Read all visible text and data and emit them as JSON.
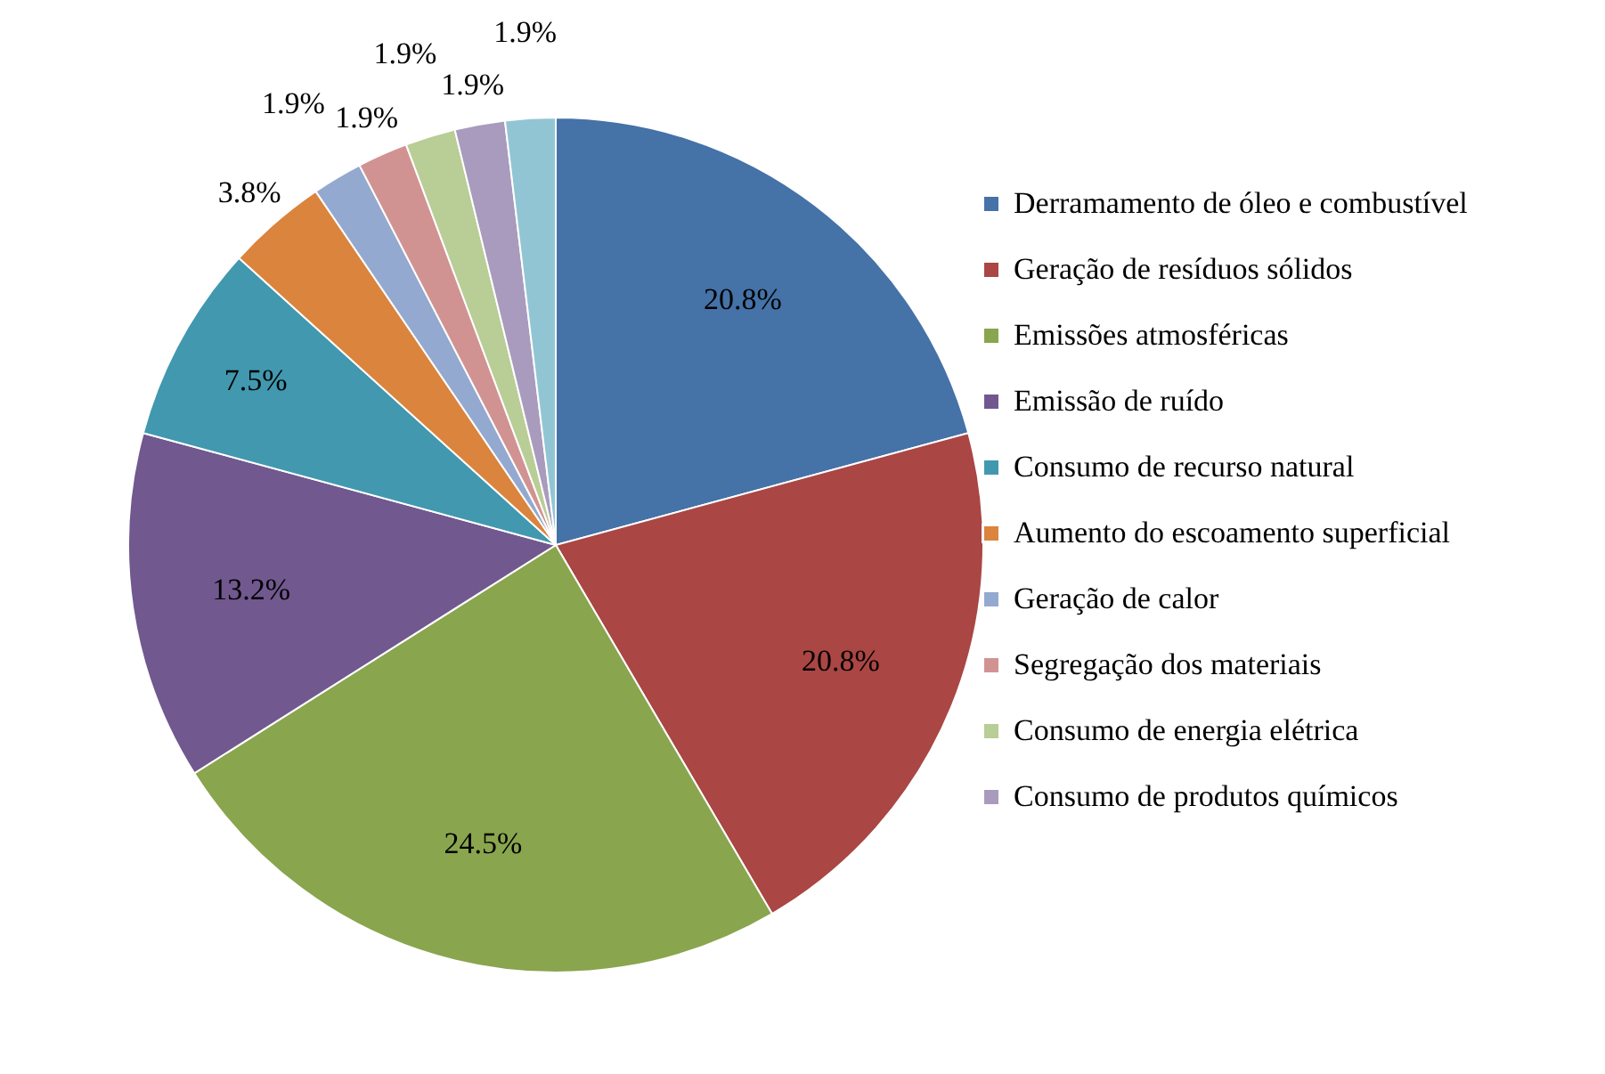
{
  "chart_data": {
    "type": "pie",
    "categories": [
      "Derramamento de óleo e combustível",
      "Geração de resíduos sólidos",
      "Emissões atmosféricas",
      "Emissão de ruído",
      "Consumo de recurso natural",
      "Aumento do escoamento superficial",
      "Geração de calor",
      "Segregação dos materiais",
      "Consumo de energia elétrica",
      "Consumo de produtos químicos",
      null
    ],
    "values": [
      20.8,
      20.8,
      24.5,
      13.2,
      7.5,
      3.8,
      1.9,
      1.9,
      1.9,
      1.9,
      1.9
    ],
    "value_labels": [
      "20.8%",
      "20.8%",
      "24.5%",
      "13.2%",
      "7.5%",
      "3.8%",
      "1.9%",
      "1.9%",
      "1.9%",
      "1.9%",
      "1.9%"
    ],
    "colors": [
      "#4572a7",
      "#aa4643",
      "#89a54e",
      "#71588f",
      "#4198af",
      "#db843d",
      "#93a9cf",
      "#d19392",
      "#b9cd96",
      "#a99bbd",
      "#92c5d4"
    ],
    "legend": "right"
  }
}
